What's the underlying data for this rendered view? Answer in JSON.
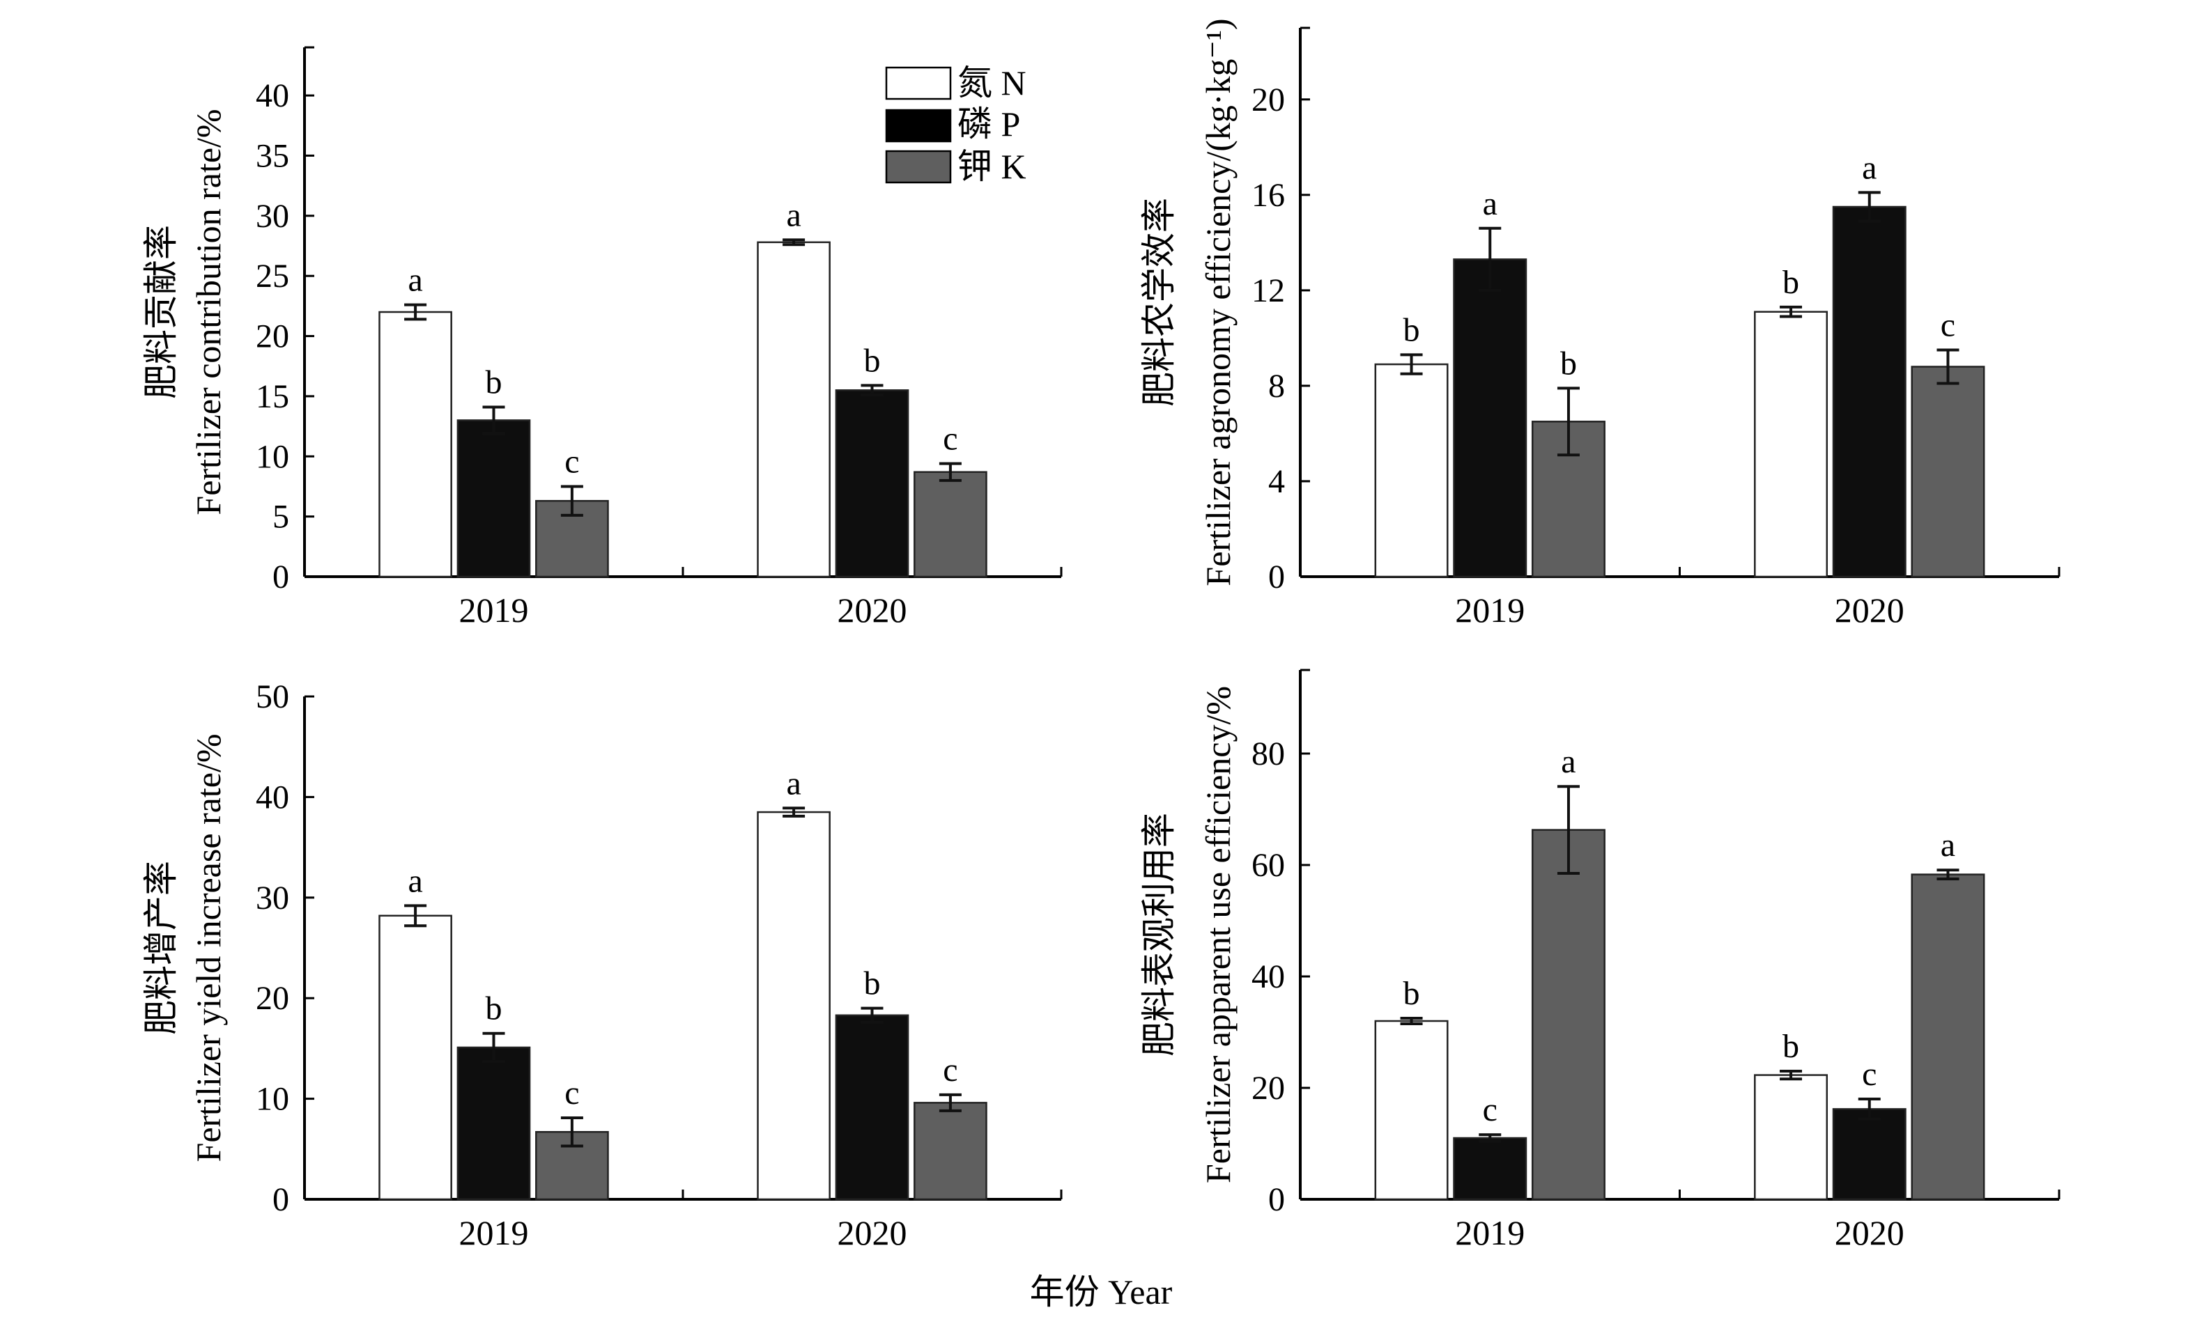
{
  "figure": {
    "x_axis_title": "年份 Year",
    "legend": [
      {
        "name": "氮 N",
        "color": "#ffffff"
      },
      {
        "name": "磷 P",
        "color": "#0e0e0e"
      },
      {
        "name": "钾 K",
        "color": "#5f5f5f"
      }
    ]
  },
  "chart_data": [
    {
      "id": "contribution",
      "type": "bar",
      "title": "",
      "ylabel_cn": "肥料贡献率",
      "ylabel_en": "Fertilizer contribution rate/%",
      "xlabel": "",
      "categories": [
        "2019",
        "2020"
      ],
      "ylim": [
        0,
        44
      ],
      "yticks": [
        0,
        5,
        10,
        15,
        20,
        25,
        30,
        35,
        40
      ],
      "grid": false,
      "legend_position": "top-right",
      "series": [
        {
          "name": "氮 N",
          "values": [
            22.0,
            27.8
          ],
          "errors": [
            0.6,
            0.2
          ],
          "sig": [
            "a",
            "a"
          ]
        },
        {
          "name": "磷 P",
          "values": [
            13.0,
            15.5
          ],
          "errors": [
            1.1,
            0.4
          ],
          "sig": [
            "b",
            "b"
          ]
        },
        {
          "name": "钾 K",
          "values": [
            6.3,
            8.7
          ],
          "errors": [
            1.2,
            0.7
          ],
          "sig": [
            "c",
            "c"
          ]
        }
      ]
    },
    {
      "id": "agronomy",
      "type": "bar",
      "title": "",
      "ylabel_cn": "肥料农学效率",
      "ylabel_en": "Fertilizer agronomy efficiency/(kg·kg⁻¹)",
      "xlabel": "",
      "categories": [
        "2019",
        "2020"
      ],
      "ylim": [
        0,
        23
      ],
      "yticks": [
        0,
        4,
        8,
        12,
        16,
        20
      ],
      "grid": false,
      "legend_position": "none",
      "series": [
        {
          "name": "氮 N",
          "values": [
            8.9,
            11.1
          ],
          "errors": [
            0.4,
            0.2
          ],
          "sig": [
            "b",
            "b"
          ]
        },
        {
          "name": "磷 P",
          "values": [
            13.3,
            15.5
          ],
          "errors": [
            1.3,
            0.6
          ],
          "sig": [
            "a",
            "a"
          ]
        },
        {
          "name": "钾 K",
          "values": [
            6.5,
            8.8
          ],
          "errors": [
            1.4,
            0.7
          ],
          "sig": [
            "b",
            "c"
          ]
        }
      ]
    },
    {
      "id": "yield_increase",
      "type": "bar",
      "title": "",
      "ylabel_cn": "肥料增产率",
      "ylabel_en": "Fertilizer yield increase rate/%",
      "xlabel": "",
      "categories": [
        "2019",
        "2020"
      ],
      "ylim": [
        0,
        50
      ],
      "yticks": [
        0,
        10,
        20,
        30,
        40,
        50
      ],
      "grid": false,
      "legend_position": "none",
      "series": [
        {
          "name": "氮 N",
          "values": [
            28.2,
            38.5
          ],
          "errors": [
            1.0,
            0.4
          ],
          "sig": [
            "a",
            "a"
          ]
        },
        {
          "name": "磷 P",
          "values": [
            15.1,
            18.3
          ],
          "errors": [
            1.4,
            0.7
          ],
          "sig": [
            "b",
            "b"
          ]
        },
        {
          "name": "钾 K",
          "values": [
            6.7,
            9.6
          ],
          "errors": [
            1.4,
            0.8
          ],
          "sig": [
            "c",
            "c"
          ]
        }
      ]
    },
    {
      "id": "apparent_use",
      "type": "bar",
      "title": "",
      "ylabel_cn": "肥料表观利用率",
      "ylabel_en": "Fertilizer apparent use efficiency/%",
      "xlabel": "",
      "categories": [
        "2019",
        "2020"
      ],
      "ylim": [
        0,
        95
      ],
      "yticks": [
        0,
        20,
        40,
        60,
        80
      ],
      "grid": false,
      "legend_position": "none",
      "series": [
        {
          "name": "氮 N",
          "values": [
            32.0,
            22.3
          ],
          "errors": [
            0.5,
            0.7
          ],
          "sig": [
            "b",
            "b"
          ]
        },
        {
          "name": "磷 P",
          "values": [
            11.0,
            16.2
          ],
          "errors": [
            0.6,
            1.8
          ],
          "sig": [
            "c",
            "c"
          ]
        },
        {
          "name": "钾 K",
          "values": [
            66.3,
            58.3
          ],
          "errors": [
            7.8,
            0.8
          ],
          "sig": [
            "a",
            "a"
          ]
        }
      ]
    }
  ]
}
